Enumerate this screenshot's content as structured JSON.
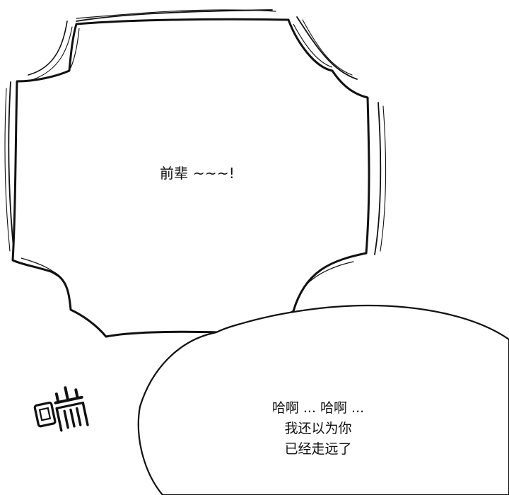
{
  "shout_bubble": {
    "text": "前辈 ~~~!"
  },
  "speech_bubble": {
    "lines": [
      "哈啊 ... 哈啊 ...",
      "我还以为你",
      "已经走远了"
    ]
  },
  "sound_effect": {
    "text": "喘"
  },
  "colors": {
    "ink": "#111111",
    "paper": "#ffffff"
  }
}
